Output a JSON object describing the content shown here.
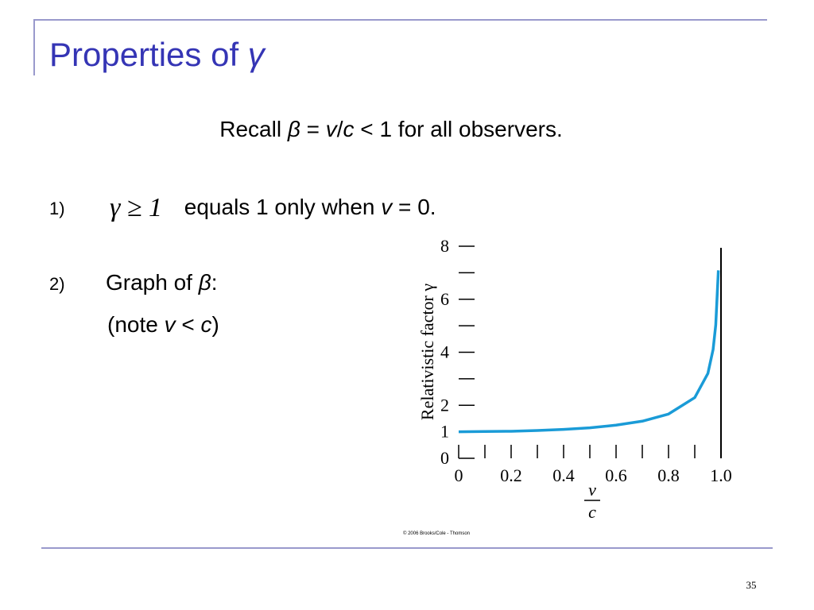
{
  "slide": {
    "title": [
      "Properties of ",
      "γ"
    ],
    "recall": [
      "Recall ",
      "β",
      " = ",
      "v",
      "/",
      "c",
      " < 1 for all observers."
    ],
    "items": [
      {
        "number": "1)",
        "lines": [
          [
            "γ ≥ 1",
            " equals 1 only when ",
            "v",
            " = 0."
          ]
        ]
      },
      {
        "number": "2)",
        "lines": [
          [
            "Graph of ",
            "β",
            ":"
          ],
          [
            "(note ",
            "v",
            " < ",
            "c",
            ")"
          ]
        ]
      }
    ],
    "page_number": "35"
  },
  "chart_data": {
    "type": "line",
    "y_label": "Relativistic factor γ",
    "x_label": {
      "numerator": "v",
      "denominator": "c"
    },
    "credit": "© 2006 Brooks/Cole - Thomson",
    "x": [
      0,
      0.1,
      0.2,
      0.3,
      0.4,
      0.5,
      0.6,
      0.7,
      0.8,
      0.9,
      0.95,
      0.97,
      0.98,
      0.99
    ],
    "values": [
      1,
      1.01,
      1.02,
      1.05,
      1.09,
      1.15,
      1.25,
      1.4,
      1.67,
      2.29,
      3.2,
      4.11,
      5.03,
      7.09
    ],
    "color": "#1a9bd7",
    "asymptote": 1,
    "xlim": [
      0,
      1
    ],
    "ylim": [
      0,
      8
    ],
    "xticks": [
      0,
      0.2,
      0.4,
      0.6,
      0.8,
      {
        "value": 1,
        "label": "1.0"
      }
    ],
    "xminor_ticks": [
      0.1,
      0.3,
      0.5,
      0.7,
      0.9
    ],
    "yticks": [
      0,
      1,
      2,
      4,
      6,
      8
    ],
    "yminor_ticks": [
      3,
      5,
      7
    ]
  }
}
